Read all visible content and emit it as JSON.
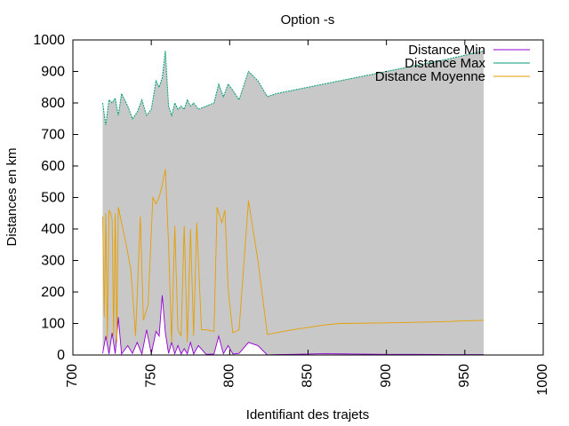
{
  "chart_data": {
    "type": "area",
    "title": "Option -s",
    "xlabel": "Identifiant des trajets",
    "ylabel": "Distances en km",
    "xlim": [
      700,
      1000
    ],
    "ylim": [
      0,
      1000
    ],
    "xticks": [
      700,
      750,
      800,
      850,
      900,
      950,
      1000
    ],
    "yticks": [
      0,
      100,
      200,
      300,
      400,
      500,
      600,
      700,
      800,
      900,
      1000
    ],
    "legend_position": "top-right",
    "grid": false,
    "series": [
      {
        "name": "Distance Min",
        "color": "#9400d3",
        "x": [
          719,
          721,
          723,
          725,
          727,
          729,
          731,
          735,
          738,
          741,
          744,
          747,
          750,
          753,
          755,
          757,
          759,
          761,
          763,
          765,
          767,
          769,
          771,
          773,
          775,
          777,
          780,
          785,
          790,
          793,
          796,
          799,
          802,
          806,
          812,
          818,
          824,
          830,
          840,
          850,
          860,
          880,
          900,
          920,
          940,
          962
        ],
        "y": [
          5,
          60,
          3,
          70,
          4,
          120,
          3,
          30,
          5,
          40,
          3,
          80,
          4,
          75,
          60,
          190,
          70,
          5,
          40,
          4,
          30,
          3,
          20,
          4,
          40,
          3,
          30,
          2,
          3,
          60,
          4,
          30,
          3,
          5,
          40,
          30,
          0,
          1,
          2,
          3,
          4,
          3,
          2,
          2,
          1,
          1
        ]
      },
      {
        "name": "Distance Max",
        "color": "#009e73",
        "x": [
          719,
          721,
          723,
          725,
          727,
          729,
          731,
          735,
          738,
          741,
          744,
          747,
          750,
          753,
          755,
          757,
          759,
          761,
          763,
          765,
          767,
          769,
          771,
          773,
          775,
          777,
          780,
          785,
          790,
          793,
          796,
          799,
          802,
          806,
          812,
          818,
          824,
          830,
          840,
          850,
          860,
          880,
          900,
          920,
          940,
          962
        ],
        "y": [
          800,
          730,
          810,
          800,
          815,
          760,
          830,
          790,
          750,
          770,
          810,
          760,
          780,
          870,
          850,
          880,
          965,
          790,
          760,
          800,
          780,
          790,
          780,
          810,
          790,
          800,
          780,
          790,
          800,
          860,
          820,
          860,
          840,
          810,
          900,
          870,
          820,
          830,
          840,
          850,
          860,
          880,
          900,
          920,
          940,
          965
        ]
      },
      {
        "name": "Distance Moyenne",
        "color": "#e69f00",
        "x": [
          719,
          720,
          721,
          722,
          723,
          724,
          725,
          726,
          727,
          728,
          729,
          731,
          734,
          737,
          740,
          743,
          745,
          748,
          751,
          753,
          755,
          757,
          759,
          761,
          763,
          765,
          767,
          769,
          771,
          773,
          775,
          777,
          779,
          782,
          785,
          790,
          792,
          795,
          797,
          799,
          802,
          806,
          812,
          818,
          824,
          840,
          860,
          870,
          900,
          930,
          962
        ],
        "y": [
          440,
          120,
          450,
          50,
          460,
          450,
          430,
          60,
          450,
          40,
          470,
          420,
          350,
          270,
          60,
          440,
          110,
          160,
          500,
          480,
          500,
          540,
          590,
          350,
          40,
          410,
          80,
          60,
          410,
          40,
          400,
          60,
          420,
          80,
          80,
          75,
          470,
          420,
          460,
          210,
          70,
          80,
          490,
          300,
          65,
          80,
          95,
          100,
          102,
          105,
          110
        ]
      }
    ]
  }
}
